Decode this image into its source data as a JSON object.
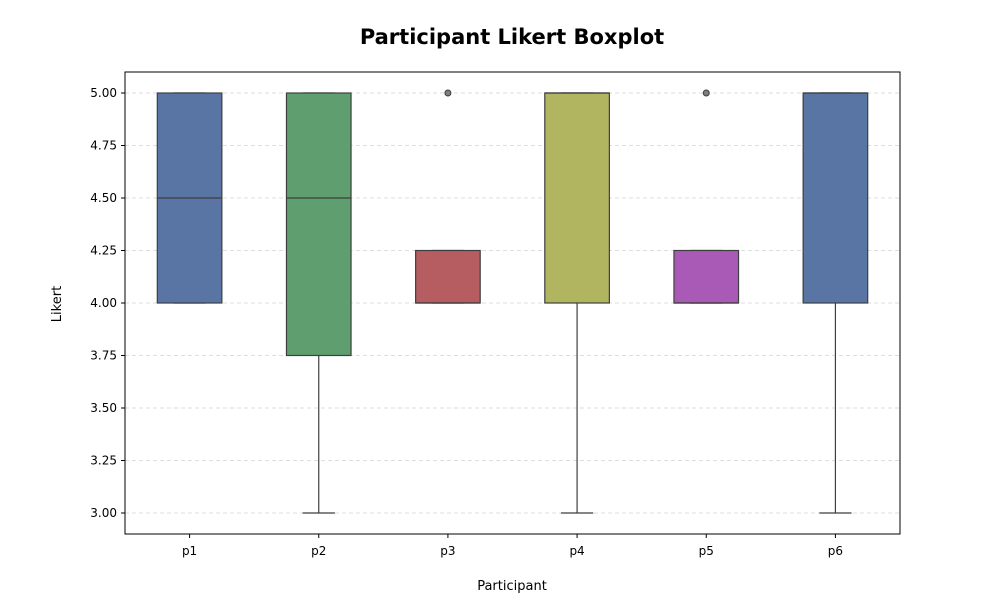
{
  "chart_data": {
    "type": "boxplot",
    "title": "Participant Likert Boxplot",
    "xlabel": "Participant",
    "ylabel": "Likert",
    "ylim": [
      2.9,
      5.1
    ],
    "yticks": [
      "3.00",
      "3.25",
      "3.50",
      "3.75",
      "4.00",
      "4.25",
      "4.50",
      "4.75",
      "5.00"
    ],
    "grid": "horizontal dashed",
    "legend": "none",
    "categories": [
      "p1",
      "p2",
      "p3",
      "p4",
      "p5",
      "p6"
    ],
    "boxes": [
      {
        "label": "p1",
        "min": 4.0,
        "q1": 4.0,
        "median": 4.5,
        "q3": 5.0,
        "max": 5.0,
        "outliers": [],
        "color": "#5875a4"
      },
      {
        "label": "p2",
        "min": 3.0,
        "q1": 3.75,
        "median": 4.5,
        "q3": 5.0,
        "max": 5.0,
        "outliers": [],
        "color": "#5f9e6e"
      },
      {
        "label": "p3",
        "min": 4.0,
        "q1": 4.0,
        "median": 4.0,
        "q3": 4.25,
        "max": 4.25,
        "outliers": [
          5.0
        ],
        "color": "#b55d60"
      },
      {
        "label": "p4",
        "min": 3.0,
        "q1": 4.0,
        "median": 5.0,
        "q3": 5.0,
        "max": 5.0,
        "outliers": [],
        "color": "#b1b55f"
      },
      {
        "label": "p5",
        "min": 4.0,
        "q1": 4.0,
        "median": 4.0,
        "q3": 4.25,
        "max": 4.25,
        "outliers": [
          5.0
        ],
        "color": "#a95ab7"
      },
      {
        "label": "p6",
        "min": 3.0,
        "q1": 4.0,
        "median": 5.0,
        "q3": 5.0,
        "max": 5.0,
        "outliers": [],
        "color": "#5875a4"
      }
    ]
  }
}
